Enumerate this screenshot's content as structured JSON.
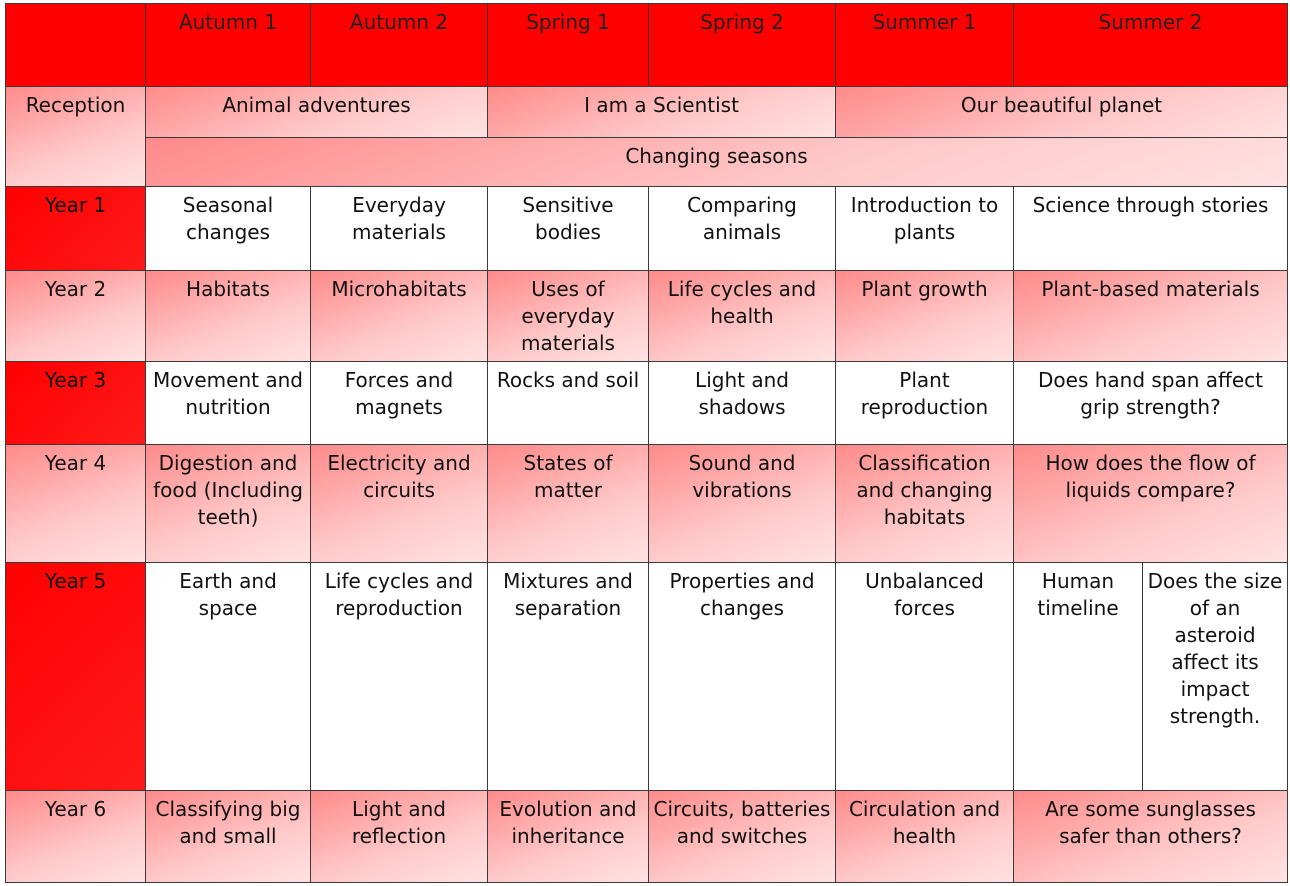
{
  "header": {
    "terms": [
      "Autumn 1",
      "Autumn 2",
      "Spring 1",
      "Spring 2",
      "Summer 1",
      "Summer 2"
    ]
  },
  "reception": {
    "label": "Reception",
    "topics": [
      "Animal adventures",
      "I am a Scientist",
      "Our beautiful planet"
    ],
    "shared": "Changing seasons"
  },
  "years": [
    {
      "label": "Year 1",
      "topics": [
        "Seasonal changes",
        "Everyday materials",
        "Sensitive bodies",
        "Comparing animals",
        "Introduction to plants",
        "Science through stories"
      ]
    },
    {
      "label": "Year 2",
      "topics": [
        "Habitats",
        "Microhabitats",
        "Uses of everyday materials",
        "Life cycles and health",
        "Plant growth",
        "Plant-based materials"
      ]
    },
    {
      "label": "Year 3",
      "topics": [
        "Movement and nutrition",
        "Forces and magnets",
        "Rocks and soil",
        "Light and shadows",
        "Plant reproduction",
        "Does hand span affect grip strength?"
      ]
    },
    {
      "label": "Year 4",
      "topics": [
        "Digestion and food (Including teeth)",
        "Electricity and circuits",
        "States of matter",
        "Sound and vibrations",
        "Classification and changing habitats",
        "How does the flow of liquids compare?"
      ]
    },
    {
      "label": "Year 5",
      "topics": [
        "Earth and space",
        "Life cycles and reproduction",
        "Mixtures and separation",
        "Properties and changes",
        "Unbalanced forces",
        "Human timeline",
        "Does the size of an asteroid affect its impact strength."
      ]
    },
    {
      "label": "Year 6",
      "topics": [
        "Classifying big and small",
        "Light and reflection",
        "Evolution and inheritance",
        "Circuits, batteries and switches",
        "Circulation and health",
        "Are some sunglasses safer than others?"
      ]
    }
  ]
}
